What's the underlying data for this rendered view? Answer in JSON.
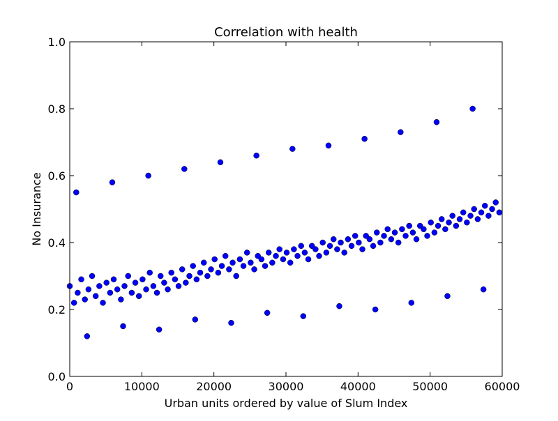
{
  "chart_data": {
    "type": "scatter",
    "title": "Correlation with health",
    "xlabel": "Urban units ordered by value of Slum Index",
    "ylabel": "No Insurance",
    "xlim": [
      0,
      60000
    ],
    "ylim": [
      0.0,
      1.0
    ],
    "xticks": [
      0,
      10000,
      20000,
      30000,
      40000,
      50000,
      60000
    ],
    "yticks": [
      0.0,
      0.2,
      0.4,
      0.6,
      0.8,
      1.0
    ],
    "xtick_labels": [
      "0",
      "10000",
      "20000",
      "30000",
      "40000",
      "50000",
      "60000"
    ],
    "ytick_labels": [
      "0.0",
      "0.2",
      "0.4",
      "0.6",
      "0.8",
      "1.0"
    ],
    "grid": false,
    "legend": "none",
    "marker_color": "#0000ff",
    "marker_edge_color": "#000000",
    "series": [
      {
        "x": [
          0,
          600,
          1100,
          1600,
          2100,
          2600,
          3100,
          3600,
          4100,
          4600,
          5100,
          5600,
          6100,
          6600,
          7100,
          7600,
          8100,
          8600,
          9100,
          9600,
          10100,
          10600,
          11100,
          11600,
          12100,
          12600,
          13100,
          13600,
          14100,
          14600,
          15100,
          15600,
          16100,
          16600,
          17100,
          17600,
          18100,
          18600,
          19100,
          19600,
          20100,
          20600,
          21100,
          21600,
          22100,
          22600,
          23100,
          23600,
          24100,
          24600,
          25100,
          25600,
          26100,
          26600,
          27100,
          27600,
          28100,
          28600,
          29100,
          29600,
          30100,
          30600,
          31100,
          31600,
          32100,
          32600,
          33100,
          33600,
          34100,
          34600,
          35100,
          35600,
          36100,
          36600,
          37100,
          37600,
          38100,
          38600,
          39100,
          39600,
          40100,
          40600,
          41100,
          41600,
          42100,
          42600,
          43100,
          43600,
          44100,
          44600,
          45100,
          45600,
          46100,
          46600,
          47100,
          47600,
          48100,
          48600,
          49100,
          49600,
          50100,
          50600,
          51100,
          51600,
          52100,
          52600,
          53100,
          53600,
          54100,
          54600,
          55100,
          55600,
          56100,
          56600,
          57100,
          57600,
          58100,
          58600,
          59100,
          59600,
          2400,
          7400,
          12400,
          17400,
          22400,
          27400,
          32400,
          37400,
          42400,
          47400,
          52400,
          57400,
          900,
          5900,
          10900,
          15900,
          20900,
          25900,
          30900,
          35900,
          40900,
          45900,
          50900,
          55900
        ],
        "y": [
          0.27,
          0.22,
          0.25,
          0.29,
          0.23,
          0.26,
          0.3,
          0.24,
          0.27,
          0.22,
          0.28,
          0.25,
          0.29,
          0.26,
          0.23,
          0.27,
          0.3,
          0.25,
          0.28,
          0.24,
          0.29,
          0.26,
          0.31,
          0.27,
          0.25,
          0.3,
          0.28,
          0.26,
          0.31,
          0.29,
          0.27,
          0.32,
          0.28,
          0.3,
          0.33,
          0.29,
          0.31,
          0.34,
          0.3,
          0.32,
          0.35,
          0.31,
          0.33,
          0.36,
          0.32,
          0.34,
          0.3,
          0.35,
          0.33,
          0.37,
          0.34,
          0.32,
          0.36,
          0.35,
          0.33,
          0.37,
          0.34,
          0.36,
          0.38,
          0.35,
          0.37,
          0.34,
          0.38,
          0.36,
          0.39,
          0.37,
          0.35,
          0.39,
          0.38,
          0.36,
          0.4,
          0.37,
          0.39,
          0.41,
          0.38,
          0.4,
          0.37,
          0.41,
          0.39,
          0.42,
          0.4,
          0.38,
          0.42,
          0.41,
          0.39,
          0.43,
          0.4,
          0.42,
          0.44,
          0.41,
          0.43,
          0.4,
          0.44,
          0.42,
          0.45,
          0.43,
          0.41,
          0.45,
          0.44,
          0.42,
          0.46,
          0.43,
          0.45,
          0.47,
          0.44,
          0.46,
          0.48,
          0.45,
          0.47,
          0.49,
          0.46,
          0.48,
          0.5,
          0.47,
          0.49,
          0.51,
          0.48,
          0.5,
          0.52,
          0.49,
          0.12,
          0.15,
          0.14,
          0.17,
          0.16,
          0.19,
          0.18,
          0.21,
          0.2,
          0.22,
          0.24,
          0.26,
          0.55,
          0.58,
          0.6,
          0.62,
          0.64,
          0.66,
          0.68,
          0.69,
          0.71,
          0.73,
          0.76,
          0.8
        ]
      }
    ]
  }
}
